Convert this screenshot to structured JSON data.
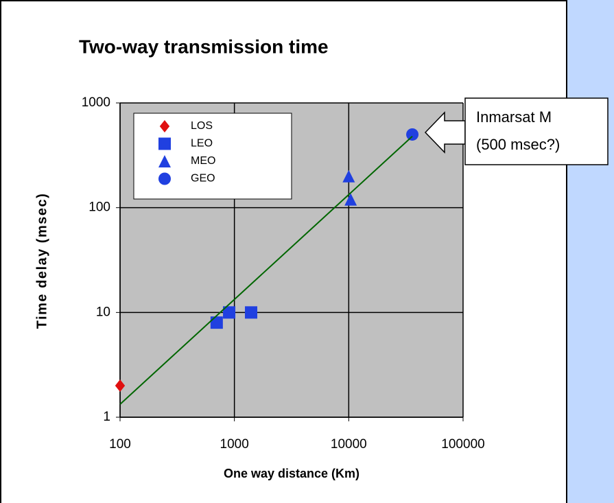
{
  "chart_data": {
    "type": "scatter",
    "title": "Two-way transmission time",
    "xlabel": "One way distance (Km)",
    "ylabel": "Time delay (msec)",
    "xscale": "log",
    "yscale": "log",
    "xlim": [
      100,
      100000
    ],
    "ylim": [
      1,
      1000
    ],
    "xticks": [
      100,
      1000,
      10000,
      100000
    ],
    "yticks": [
      1,
      10,
      100,
      1000
    ],
    "grid": true,
    "legend": "upper left",
    "series": [
      {
        "name": "LOS",
        "color": "#e01010",
        "marker": "diamond",
        "x": [
          100
        ],
        "values": [
          2
        ]
      },
      {
        "name": "LEO",
        "color": "#2040e0",
        "marker": "square",
        "x": [
          700,
          900,
          1400
        ],
        "values": [
          8,
          10,
          10
        ]
      },
      {
        "name": "MEO",
        "color": "#2040e0",
        "marker": "triangle",
        "x": [
          10000,
          10400
        ],
        "values": [
          200,
          120
        ]
      },
      {
        "name": "GEO",
        "color": "#2040e0",
        "marker": "circle",
        "x": [
          36000
        ],
        "values": [
          500
        ]
      },
      {
        "color": "#006600",
        "marker": "line",
        "x": [
          100,
          36000
        ],
        "values": [
          1.33,
          480
        ]
      }
    ],
    "annotation": [
      "Inmarsat M",
      "(500 msec?)"
    ]
  }
}
